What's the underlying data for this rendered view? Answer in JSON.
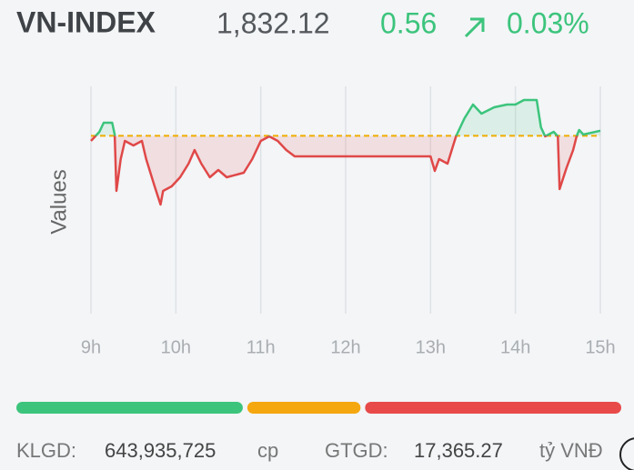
{
  "header": {
    "title": "VN-INDEX",
    "price": "1,832.12",
    "change": "0.56",
    "percent": "0.03%"
  },
  "chart_data": {
    "type": "line",
    "ylabel": "Values",
    "x": [
      9.0,
      9.05,
      9.1,
      9.15,
      9.25,
      9.28,
      9.3,
      9.35,
      9.4,
      9.5,
      9.6,
      9.65,
      9.75,
      9.82,
      9.85,
      9.95,
      10.05,
      10.15,
      10.22,
      10.3,
      10.4,
      10.5,
      10.6,
      10.8,
      10.9,
      11.0,
      11.1,
      11.2,
      11.3,
      11.4,
      12.0,
      13.0,
      13.05,
      13.1,
      13.2,
      13.3,
      13.4,
      13.5,
      13.6,
      13.75,
      13.9,
      14.0,
      14.1,
      14.25,
      14.3,
      14.35,
      14.45,
      14.5,
      14.52,
      14.6,
      14.68,
      14.72,
      14.75,
      14.8,
      15.0
    ],
    "values": [
      1831.0,
      1831.5,
      1832.0,
      1833.0,
      1833.0,
      1831.7,
      1825.5,
      1829.0,
      1831.0,
      1830.5,
      1831.0,
      1829.0,
      1826.0,
      1824.0,
      1825.5,
      1826.0,
      1827.0,
      1828.5,
      1830.0,
      1828.5,
      1827.0,
      1827.8,
      1827.0,
      1827.5,
      1829.0,
      1831.0,
      1831.5,
      1831.0,
      1830.0,
      1829.3,
      1829.3,
      1829.3,
      1827.7,
      1829.0,
      1828.5,
      1831.5,
      1833.5,
      1835.0,
      1834.0,
      1834.7,
      1835.0,
      1835.0,
      1835.5,
      1835.5,
      1832.5,
      1831.5,
      1832.0,
      1831.5,
      1825.7,
      1828.0,
      1830.0,
      1831.5,
      1832.2,
      1831.7,
      1832.12
    ],
    "reference": 1831.56,
    "reference_color": "#f0ad00",
    "up_color": "#3cc47c",
    "down_color": "#e04848",
    "xlim": [
      9,
      15
    ],
    "ylim": [
      1812,
      1837
    ],
    "xticks": [
      {
        "value": 9,
        "label": "9h"
      },
      {
        "value": 10,
        "label": "10h"
      },
      {
        "value": 11,
        "label": "11h"
      },
      {
        "value": 12,
        "label": "12h"
      },
      {
        "value": 13,
        "label": "13h"
      },
      {
        "value": 14,
        "label": "14h"
      },
      {
        "value": 15,
        "label": "15h"
      }
    ],
    "grid": true
  },
  "breadth": {
    "values": [
      38,
      19,
      43
    ],
    "colors": [
      "#3cc47c",
      "#f5a70f",
      "#e84a4a"
    ]
  },
  "footer": {
    "volume_label": "KLGD:",
    "volume": "643,935,725",
    "volume_unit": "cp",
    "value_label": "GTGD:",
    "value": "17,365.27",
    "value_unit": "tỷ VNĐ"
  }
}
